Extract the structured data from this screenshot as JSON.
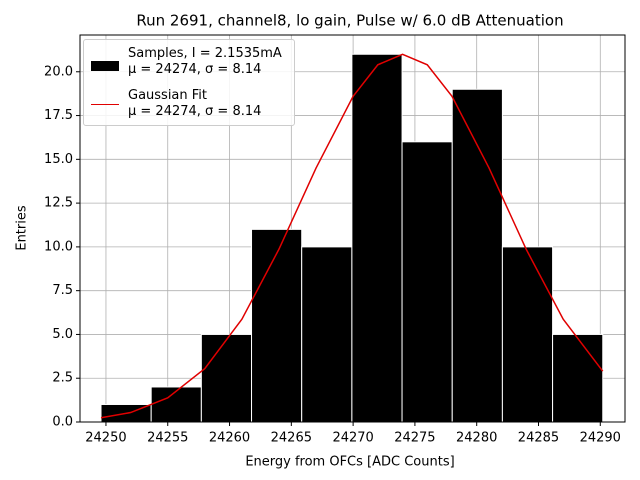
{
  "chart_data": {
    "type": "histogram",
    "title": "Run 2691, channel8, lo gain, Pulse w/ 6.0 dB Attenuation",
    "xlabel": "Energy from OFCs [ADC Counts]",
    "ylabel": "Entries",
    "name": "Samples, I = 2.1535mA\nμ = 24274, σ = 8.14",
    "color": "#000000",
    "bins": [
      24249.6,
      24253.66,
      24257.72,
      24261.78,
      24265.84,
      24269.9,
      24273.96,
      24278.02,
      24282.08,
      24286.14,
      24290.2
    ],
    "values": [
      1,
      2,
      5,
      11,
      10,
      21,
      16,
      19,
      10,
      5
    ],
    "fit": {
      "type": "line",
      "name": "Gaussian Fit\nμ = 24274, σ = 8.14",
      "color": "#e00000",
      "x": [
        24249.6,
        24252,
        24255,
        24258,
        24261,
        24264,
        24267,
        24270,
        24272,
        24274,
        24276,
        24278,
        24281,
        24284,
        24287,
        24290.2
      ],
      "values": [
        0.24,
        0.54,
        1.38,
        3.05,
        5.87,
        9.87,
        14.5,
        18.6,
        20.4,
        21,
        20.4,
        18.6,
        14.5,
        9.87,
        5.87,
        2.9
      ]
    },
    "xlim": [
      24247.9,
      24292.0
    ],
    "ylim": [
      0,
      22.1
    ],
    "xticks": [
      24250,
      24255,
      24260,
      24265,
      24270,
      24275,
      24280,
      24285,
      24290
    ],
    "yticks": [
      {
        "value": 0,
        "label": "0.0"
      },
      2.5,
      {
        "value": 5,
        "label": "5.0"
      },
      7.5,
      {
        "value": 10,
        "label": "10.0"
      },
      12.5,
      {
        "value": 15,
        "label": "15.0"
      },
      17.5,
      {
        "value": 20,
        "label": "20.0"
      }
    ],
    "grid": true
  }
}
